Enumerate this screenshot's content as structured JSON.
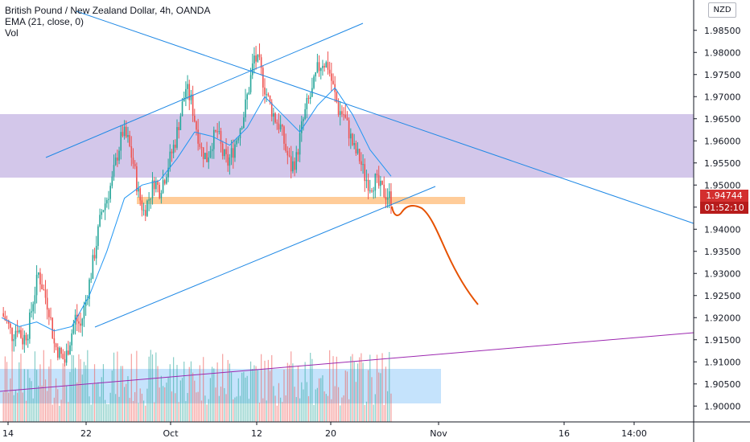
{
  "legend": {
    "title": "British Pound / New Zealand Dollar, 4h, OANDA",
    "ema": "EMA (21, close, 0)",
    "vol": "Vol"
  },
  "currency": "NZD",
  "last_price": "1.94744",
  "countdown": "01:52:10",
  "colors": {
    "up": "#26a69a",
    "down": "#ef5350",
    "ema": "#2196f3",
    "resistance_zone": "#d1c4e9",
    "support_zone": "#ffcc99",
    "volume_zone": "#bbdefb",
    "projection": "#e65100",
    "price_tag": "#d32f2f",
    "countdown_tag": "#b71c1c"
  },
  "chart_data": {
    "type": "candlestick",
    "symbol": "GBPNZD",
    "interval": "4h",
    "y_axis": {
      "range": [
        1.8975,
        1.9875
      ],
      "ticks": [
        "1.98500",
        "1.98000",
        "1.97500",
        "1.97000",
        "1.96500",
        "1.96000",
        "1.95500",
        "1.95000",
        "1.94500",
        "1.94000",
        "1.93500",
        "1.93000",
        "1.92500",
        "1.92000",
        "1.91500",
        "1.91000",
        "1.90500",
        "1.90000"
      ]
    },
    "x_axis": {
      "ticks": [
        "14",
        "22",
        "Oct",
        "12",
        "20",
        "Nov",
        "16",
        "14:00"
      ]
    },
    "close_path": [
      [
        0,
        1.921
      ],
      [
        3,
        1.919
      ],
      [
        6,
        1.916
      ],
      [
        9,
        1.918
      ],
      [
        12,
        1.915
      ],
      [
        15,
        1.917
      ],
      [
        18,
        1.924
      ],
      [
        21,
        1.93
      ],
      [
        24,
        1.926
      ],
      [
        27,
        1.922
      ],
      [
        30,
        1.914
      ],
      [
        33,
        1.912
      ],
      [
        36,
        1.91
      ],
      [
        39,
        1.915
      ],
      [
        42,
        1.92
      ],
      [
        45,
        1.918
      ],
      [
        48,
        1.924
      ],
      [
        51,
        1.93
      ],
      [
        54,
        1.937
      ],
      [
        57,
        1.944
      ],
      [
        60,
        1.947
      ],
      [
        63,
        1.951
      ],
      [
        66,
        1.957
      ],
      [
        69,
        1.962
      ],
      [
        72,
        1.96
      ],
      [
        75,
        1.955
      ],
      [
        78,
        1.948
      ],
      [
        81,
        1.944
      ],
      [
        84,
        1.947
      ],
      [
        87,
        1.951
      ],
      [
        90,
        1.949
      ],
      [
        93,
        1.952
      ],
      [
        96,
        1.956
      ],
      [
        99,
        1.96
      ],
      [
        102,
        1.966
      ],
      [
        105,
        1.972
      ],
      [
        108,
        1.969
      ],
      [
        111,
        1.963
      ],
      [
        114,
        1.958
      ],
      [
        117,
        1.956
      ],
      [
        120,
        1.96
      ],
      [
        123,
        1.962
      ],
      [
        126,
        1.957
      ],
      [
        129,
        1.955
      ],
      [
        132,
        1.958
      ],
      [
        135,
        1.962
      ],
      [
        138,
        1.966
      ],
      [
        141,
        1.972
      ],
      [
        144,
        1.979
      ],
      [
        147,
        1.977
      ],
      [
        150,
        1.972
      ],
      [
        153,
        1.968
      ],
      [
        156,
        1.965
      ],
      [
        159,
        1.963
      ],
      [
        162,
        1.958
      ],
      [
        165,
        1.954
      ],
      [
        168,
        1.956
      ],
      [
        171,
        1.963
      ],
      [
        174,
        1.968
      ],
      [
        177,
        1.971
      ],
      [
        180,
        1.976
      ],
      [
        183,
        1.978
      ],
      [
        186,
        1.977
      ],
      [
        189,
        1.972
      ],
      [
        192,
        1.967
      ],
      [
        195,
        1.966
      ],
      [
        198,
        1.962
      ],
      [
        201,
        1.958
      ],
      [
        204,
        1.956
      ],
      [
        207,
        1.952
      ],
      [
        210,
        1.95
      ],
      [
        213,
        1.951
      ],
      [
        216,
        1.949
      ],
      [
        219,
        1.948
      ],
      [
        222,
        1.947
      ]
    ],
    "ema21_path": [
      [
        0,
        1.92
      ],
      [
        10,
        1.918
      ],
      [
        20,
        1.919
      ],
      [
        30,
        1.917
      ],
      [
        40,
        1.918
      ],
      [
        50,
        1.925
      ],
      [
        60,
        1.935
      ],
      [
        70,
        1.947
      ],
      [
        80,
        1.95
      ],
      [
        90,
        1.951
      ],
      [
        100,
        1.956
      ],
      [
        110,
        1.962
      ],
      [
        120,
        1.961
      ],
      [
        130,
        1.959
      ],
      [
        140,
        1.963
      ],
      [
        150,
        1.97
      ],
      [
        160,
        1.966
      ],
      [
        170,
        1.962
      ],
      [
        180,
        1.968
      ],
      [
        190,
        1.972
      ],
      [
        200,
        1.966
      ],
      [
        210,
        1.958
      ],
      [
        222,
        1.952
      ]
    ]
  }
}
